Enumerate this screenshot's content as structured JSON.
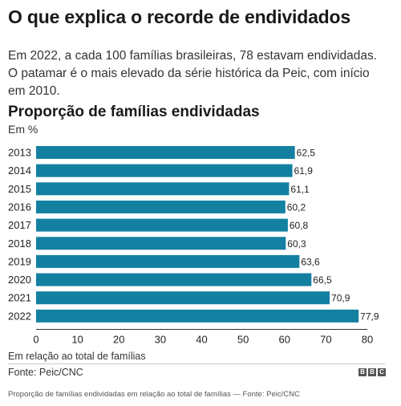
{
  "headline": "O que explica o recorde de endividados",
  "standfirst": "Em 2022, a cada 100 famílias brasileiras, 78 estavam endividadas. O patamar é o mais elevado da série histórica da Peic, com início em 2010.",
  "footer": {
    "axis_note": "Em relação ao total de famílias",
    "source": "Fonte: Peic/CNC",
    "logo_letters": [
      "B",
      "B",
      "C"
    ],
    "caption": "Proporção de famílias endividadas em relação ao total de famílias — Fonte: Peic/CNC"
  },
  "chart_data": {
    "type": "bar",
    "orientation": "horizontal",
    "title": "Proporção de famílias endividadas",
    "subtitle": "Em %",
    "categories": [
      "2013",
      "2014",
      "2015",
      "2016",
      "2017",
      "2018",
      "2019",
      "2020",
      "2021",
      "2022"
    ],
    "values": [
      62.5,
      61.9,
      61.1,
      60.2,
      60.8,
      60.3,
      63.6,
      66.5,
      70.9,
      77.9
    ],
    "value_labels": [
      "62,5",
      "61,9",
      "61,1",
      "60,2",
      "60,8",
      "60,3",
      "63,6",
      "66,5",
      "70,9",
      "77,9"
    ],
    "xlim": [
      0,
      80
    ],
    "xticks": [
      0,
      10,
      20,
      30,
      40,
      50,
      60,
      70,
      80
    ],
    "xlabel": "",
    "ylabel": "",
    "grid": false,
    "legend": "none",
    "bar_color": "#1380a1"
  }
}
